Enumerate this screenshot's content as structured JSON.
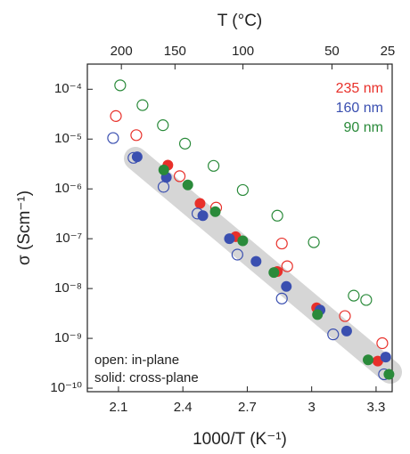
{
  "chart_data": {
    "type": "scatter",
    "x_label": "1000/T (K⁻¹)",
    "y_label": "σ (Scm⁻¹)",
    "top_axis": {
      "label": "T (°C)",
      "ticks": [
        200,
        150,
        100,
        50,
        25
      ]
    },
    "xlim": [
      1.955,
      3.375
    ],
    "xticks": [
      2.1,
      2.4,
      2.7,
      3.0,
      3.3
    ],
    "ylim": [
      8.5e-11,
      0.00032
    ],
    "log_y": true,
    "yticks": [
      {
        "value": 0.0001,
        "label": "10⁻⁴"
      },
      {
        "value": 1e-05,
        "label": "10⁻⁵"
      },
      {
        "value": 1e-06,
        "label": "10⁻⁶"
      },
      {
        "value": 1e-07,
        "label": "10⁻⁷"
      },
      {
        "value": 1e-08,
        "label": "10⁻⁸"
      },
      {
        "value": 1e-09,
        "label": "10⁻⁹"
      },
      {
        "value": 1e-10,
        "label": "10⁻¹⁰"
      }
    ],
    "annotations": [
      "open: in-plane",
      "solid: cross-plane"
    ],
    "series": [
      {
        "name": "235 nm",
        "color": "#e8302a",
        "open": {
          "x": [
            2.088,
            2.183,
            2.385,
            2.555,
            2.861,
            2.886,
            3.155,
            3.329
          ],
          "values": [
            2.9e-05,
            1.2e-05,
            1.8e-06,
            4.2e-07,
            8e-08,
            2.8e-08,
            2.8e-09,
            8e-10
          ]
        },
        "solid": {
          "x": [
            2.33,
            2.48,
            2.646,
            2.84,
            3.023,
            3.308
          ],
          "values": [
            3e-06,
            5.1e-07,
            1.1e-07,
            2.2e-08,
            4.1e-09,
            3.5e-10
          ]
        }
      },
      {
        "name": "160 nm",
        "color": "#3a4fb0",
        "open": {
          "x": [
            2.075,
            2.17,
            2.31,
            2.468,
            2.654,
            2.861,
            3.1,
            3.337
          ],
          "values": [
            1.05e-05,
            4.2e-06,
            1.1e-06,
            3.2e-07,
            4.8e-08,
            6.3e-09,
            1.2e-09,
            1.9e-10
          ]
        },
        "solid": {
          "x": [
            2.187,
            2.323,
            2.493,
            2.617,
            2.741,
            2.882,
            3.039,
            3.163,
            3.345
          ],
          "values": [
            4.4e-06,
            1.7e-06,
            2.9e-07,
            1e-07,
            3.5e-08,
            1.1e-08,
            3.7e-09,
            1.4e-09,
            4.2e-10
          ]
        }
      },
      {
        "name": "90 nm",
        "color": "#2a8a3a",
        "open": {
          "x": [
            2.108,
            2.212,
            2.307,
            2.41,
            2.543,
            2.679,
            2.84,
            3.01,
            3.196,
            3.254
          ],
          "values": [
            0.00012,
            4.8e-05,
            1.9e-05,
            8.1e-06,
            2.9e-06,
            9.5e-07,
            2.9e-07,
            8.5e-08,
            7.2e-09,
            5.9e-09
          ]
        },
        "solid": {
          "x": [
            2.311,
            2.423,
            2.551,
            2.679,
            2.824,
            3.027,
            3.263,
            3.36
          ],
          "values": [
            2.4e-06,
            1.2e-06,
            3.5e-07,
            9.1e-08,
            2.1e-08,
            3e-09,
            3.7e-10,
            1.9e-10
          ]
        }
      }
    ]
  }
}
